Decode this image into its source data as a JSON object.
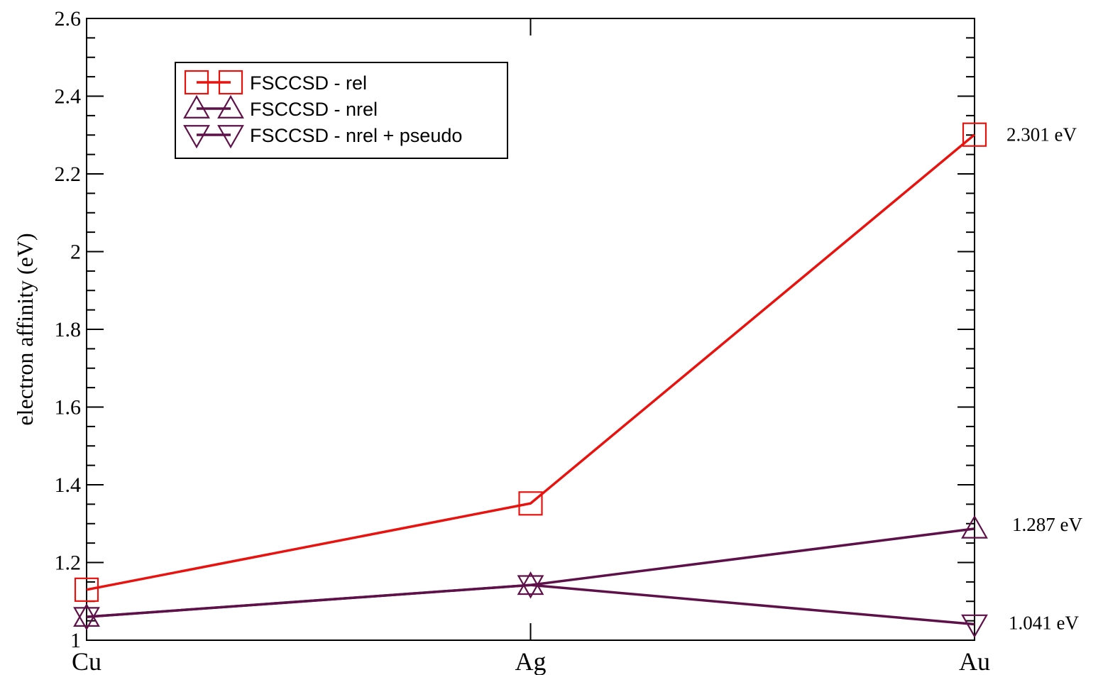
{
  "chart_data": {
    "type": "line",
    "categories": [
      "Cu",
      "Ag",
      "Au"
    ],
    "ylabel": "electron affinity (eV)",
    "xlabel": "",
    "ylim": [
      1,
      2.6
    ],
    "yticks": [
      "1",
      "1.2",
      "1.4",
      "1.6",
      "1.8",
      "2",
      "2.2",
      "2.4",
      "2.6"
    ],
    "ytick_values": [
      1,
      1.2,
      1.4,
      1.6,
      1.8,
      2,
      2.2,
      2.4,
      2.6
    ],
    "grid": false,
    "legend_position": "top-left",
    "series": [
      {
        "name": "FSCCSD - rel",
        "values": [
          1.13,
          1.352,
          2.301
        ],
        "marker": "square",
        "color": "#e8130f"
      },
      {
        "name": "FSCCSD - nrel",
        "values": [
          1.06,
          1.142,
          1.287
        ],
        "marker": "triangle-up",
        "color": "#5e1049"
      },
      {
        "name": "FSCCSD - nrel + pseudo",
        "values": [
          1.06,
          1.142,
          1.041
        ],
        "marker": "triangle-down",
        "color": "#5e1049"
      }
    ],
    "annotations": [
      {
        "text": "2.301 eV",
        "category": "Au",
        "value": 2.301
      },
      {
        "text": "1.287 eV",
        "category": "Au",
        "value": 1.287
      },
      {
        "text": "1.041 eV",
        "category": "Au",
        "value": 1.041
      }
    ]
  }
}
